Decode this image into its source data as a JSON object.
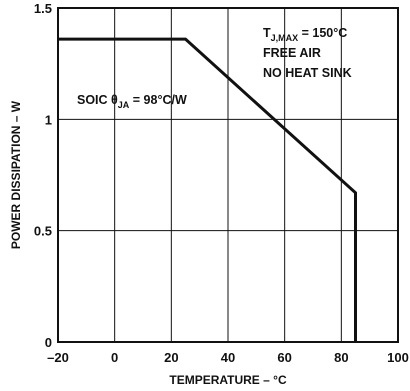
{
  "chart_data": {
    "type": "line",
    "xlabel": "TEMPERATURE – °C",
    "ylabel": "POWER DISSIPATION – W",
    "xlim": [
      -20,
      100
    ],
    "ylim": [
      0,
      1.5
    ],
    "x_ticks": [
      -20,
      0,
      20,
      40,
      60,
      80,
      100
    ],
    "y_ticks": [
      0,
      0.5,
      1,
      1.5
    ],
    "x_tick_labels": [
      "–20",
      "0",
      "20",
      "40",
      "60",
      "80",
      "100"
    ],
    "y_tick_labels": [
      "0",
      "0.5",
      "1",
      "1.5"
    ],
    "grid": true,
    "series": [
      {
        "x": [
          -20,
          25,
          85,
          85
        ],
        "y": [
          1.36,
          1.36,
          0.67,
          0
        ]
      }
    ],
    "annotations": {
      "tj_main": "T",
      "tj_sub": "J,MAX",
      "tj_value": " = 150°C",
      "line2": "FREE AIR",
      "line3": "NO HEAT SINK",
      "soic_prefix": "SOIC θ",
      "soic_sub": "JA",
      "soic_value": " = 98°C/W"
    }
  }
}
